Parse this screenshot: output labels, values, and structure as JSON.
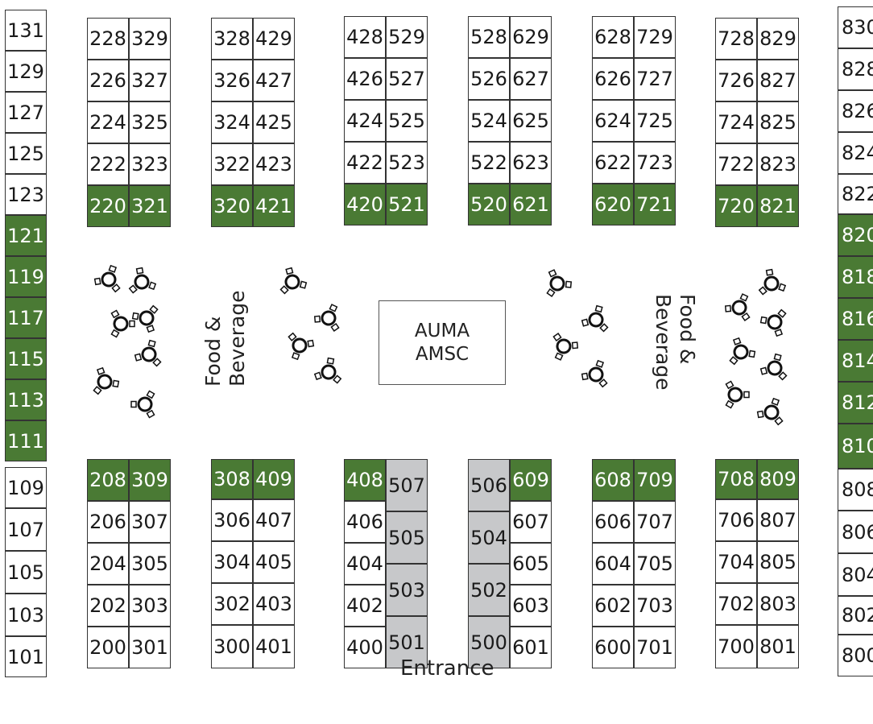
{
  "center_booth": {
    "line1": "AUMA",
    "line2": "AMSC"
  },
  "food_left": {
    "line1": "Food &",
    "line2": "Beverage"
  },
  "food_right": {
    "line1": "Food &",
    "line2": "Beverage"
  },
  "entrance": "Entrance",
  "colors": {
    "taken": "#4a7a34",
    "special": "#c7c8ca",
    "available": "#ffffff",
    "border": "#333333"
  },
  "legend_states": {
    "taken": "green",
    "special": "grey",
    "available": "white"
  },
  "booths": {
    "b131": "131",
    "b129": "129",
    "b127": "127",
    "b125": "125",
    "b123": "123",
    "b121": "121",
    "b119": "119",
    "b117": "117",
    "b115": "115",
    "b113": "113",
    "b111": "111",
    "b109": "109",
    "b107": "107",
    "b105": "105",
    "b103": "103",
    "b101": "101",
    "b228": "228",
    "b329": "329",
    "b226": "226",
    "b327": "327",
    "b224": "224",
    "b325": "325",
    "b222": "222",
    "b323": "323",
    "b220": "220",
    "b321": "321",
    "b328": "328",
    "b429": "429",
    "b326": "326",
    "b427": "427",
    "b324": "324",
    "b425": "425",
    "b322": "322",
    "b423": "423",
    "b320": "320",
    "b421": "421",
    "b428": "428",
    "b529": "529",
    "b426": "426",
    "b527": "527",
    "b424": "424",
    "b525": "525",
    "b422": "422",
    "b523": "523",
    "b420": "420",
    "b521": "521",
    "b528": "528",
    "b629": "629",
    "b526": "526",
    "b627": "627",
    "b524": "524",
    "b625": "625",
    "b522": "522",
    "b623": "623",
    "b520": "520",
    "b621": "621",
    "b628": "628",
    "b729": "729",
    "b626": "626",
    "b727": "727",
    "b624": "624",
    "b725": "725",
    "b622": "622",
    "b723": "723",
    "b620": "620",
    "b721": "721",
    "b728": "728",
    "b829": "829",
    "b726": "726",
    "b827": "827",
    "b724": "724",
    "b825": "825",
    "b722": "722",
    "b823": "823",
    "b720": "720",
    "b821": "821",
    "b830": "830",
    "b828": "828",
    "b826": "826",
    "b824": "824",
    "b822": "822",
    "b820": "820",
    "b818": "818",
    "b816": "816",
    "b814": "814",
    "b812": "812",
    "b810": "810",
    "b808": "808",
    "b806": "806",
    "b804": "804",
    "b802": "802",
    "b800": "800",
    "b208": "208",
    "b309": "309",
    "b206": "206",
    "b307": "307",
    "b204": "204",
    "b305": "305",
    "b202": "202",
    "b303": "303",
    "b200": "200",
    "b301": "301",
    "b308": "308",
    "b409": "409",
    "b306": "306",
    "b407": "407",
    "b304": "304",
    "b405": "405",
    "b302": "302",
    "b403": "403",
    "b300": "300",
    "b401": "401",
    "b408": "408",
    "b406": "406",
    "b404": "404",
    "b402": "402",
    "b400": "400",
    "b507": "507",
    "b505": "505",
    "b503": "503",
    "b501": "501",
    "b506": "506",
    "b504": "504",
    "b502": "502",
    "b500": "500",
    "b609": "609",
    "b607": "607",
    "b605": "605",
    "b603": "603",
    "b601": "601",
    "b608": "608",
    "b709": "709",
    "b606": "606",
    "b707": "707",
    "b604": "604",
    "b705": "705",
    "b602": "602",
    "b703": "703",
    "b600": "600",
    "b701": "701",
    "b708": "708",
    "b809": "809",
    "b706": "706",
    "b807": "807",
    "b704": "704",
    "b805": "805",
    "b702": "702",
    "b803": "803",
    "b700": "700",
    "b801": "801"
  },
  "taken_booths": [
    "121",
    "119",
    "117",
    "115",
    "113",
    "111",
    "220",
    "321",
    "320",
    "421",
    "420",
    "521",
    "520",
    "621",
    "620",
    "721",
    "720",
    "821",
    "820",
    "818",
    "816",
    "814",
    "812",
    "810",
    "208",
    "309",
    "308",
    "409",
    "408",
    "609",
    "608",
    "709",
    "708",
    "809"
  ],
  "special_booths": [
    "507",
    "505",
    "503",
    "501",
    "506",
    "504",
    "502",
    "500"
  ]
}
